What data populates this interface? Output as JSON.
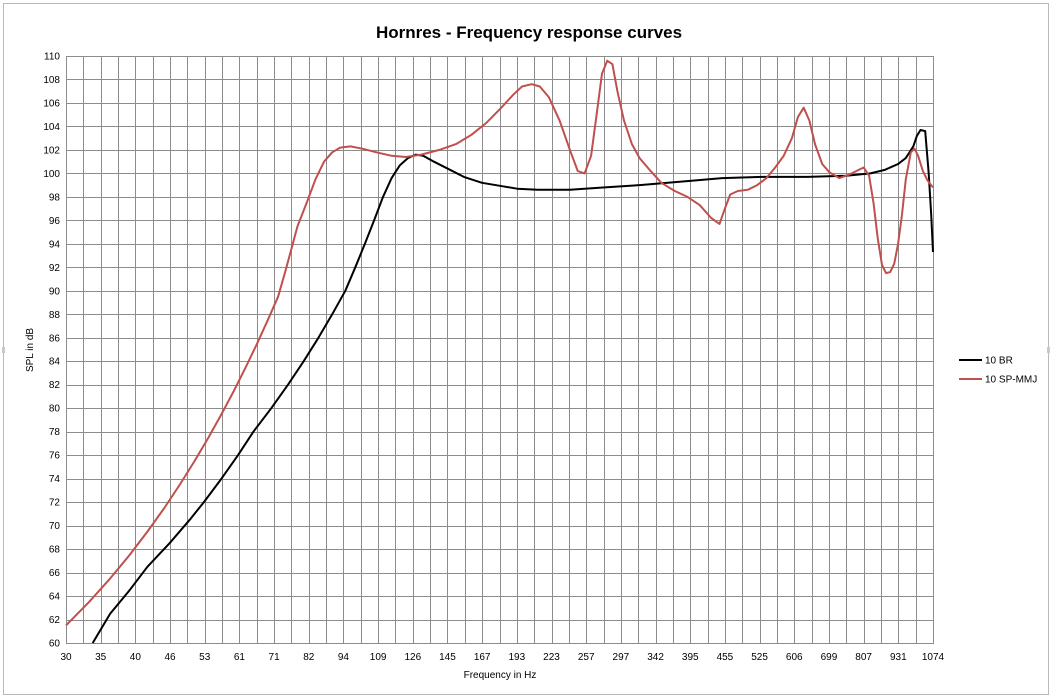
{
  "chart_data": {
    "type": "line",
    "title": "Hornres - Frequency response curves",
    "xlabel": "Frequency in Hz",
    "ylabel": "SPL in dB",
    "ylim": [
      60,
      110
    ],
    "ytick_step": 2,
    "x_tick_labels": [
      "30",
      "35",
      "40",
      "46",
      "53",
      "61",
      "71",
      "82",
      "94",
      "109",
      "126",
      "145",
      "167",
      "193",
      "223",
      "257",
      "297",
      "342",
      "395",
      "455",
      "525",
      "606",
      "699",
      "807",
      "931",
      "1074"
    ],
    "x_scale": "log",
    "xlim": [
      30,
      1074
    ],
    "minor_divisions_per_label": 2,
    "grid": true,
    "legend_position": "right",
    "series": [
      {
        "name": "10 BR",
        "color": "#000000",
        "points": [
          [
            33.5,
            60
          ],
          [
            36,
            62.5
          ],
          [
            39,
            64.5
          ],
          [
            42,
            66.5
          ],
          [
            46,
            68.5
          ],
          [
            50,
            70.5
          ],
          [
            53,
            72
          ],
          [
            57,
            74
          ],
          [
            61,
            76
          ],
          [
            65,
            78
          ],
          [
            70,
            80
          ],
          [
            75,
            82
          ],
          [
            80,
            84
          ],
          [
            85,
            86
          ],
          [
            90,
            88
          ],
          [
            95,
            90
          ],
          [
            99,
            92
          ],
          [
            103,
            94
          ],
          [
            107,
            96
          ],
          [
            111,
            98
          ],
          [
            115,
            99.6
          ],
          [
            119,
            100.7
          ],
          [
            123,
            101.3
          ],
          [
            127,
            101.6
          ],
          [
            131,
            101.5
          ],
          [
            137,
            101
          ],
          [
            145,
            100.4
          ],
          [
            155,
            99.7
          ],
          [
            167,
            99.2
          ],
          [
            182,
            98.9
          ],
          [
            193,
            98.7
          ],
          [
            210,
            98.6
          ],
          [
            240,
            98.6
          ],
          [
            275,
            98.8
          ],
          [
            320,
            99
          ],
          [
            380,
            99.3
          ],
          [
            450,
            99.6
          ],
          [
            530,
            99.7
          ],
          [
            640,
            99.7
          ],
          [
            750,
            99.8
          ],
          [
            830,
            100
          ],
          [
            880,
            100.3
          ],
          [
            930,
            100.8
          ],
          [
            960,
            101.3
          ],
          [
            990,
            102.3
          ],
          [
            1005,
            103.2
          ],
          [
            1020,
            103.7
          ],
          [
            1040,
            103.6
          ],
          [
            1055,
            100
          ],
          [
            1066,
            96.5
          ],
          [
            1074,
            93.3
          ]
        ]
      },
      {
        "name": "10 SP-MMJ",
        "color": "#c0504d",
        "points": [
          [
            30,
            61.5
          ],
          [
            33,
            63.5
          ],
          [
            36,
            65.5
          ],
          [
            39,
            67.5
          ],
          [
            42,
            69.5
          ],
          [
            45,
            71.5
          ],
          [
            48,
            73.5
          ],
          [
            51,
            75.5
          ],
          [
            54,
            77.5
          ],
          [
            57,
            79.5
          ],
          [
            60,
            81.5
          ],
          [
            63,
            83.5
          ],
          [
            66,
            85.5
          ],
          [
            69,
            87.5
          ],
          [
            72,
            89.5
          ],
          [
            74,
            91.5
          ],
          [
            76,
            93.5
          ],
          [
            78,
            95.5
          ],
          [
            81,
            97.5
          ],
          [
            84,
            99.5
          ],
          [
            87,
            101
          ],
          [
            90,
            101.8
          ],
          [
            93,
            102.2
          ],
          [
            97,
            102.3
          ],
          [
            102,
            102.1
          ],
          [
            108,
            101.8
          ],
          [
            115,
            101.5
          ],
          [
            122,
            101.4
          ],
          [
            130,
            101.6
          ],
          [
            140,
            102
          ],
          [
            150,
            102.5
          ],
          [
            160,
            103.3
          ],
          [
            170,
            104.3
          ],
          [
            180,
            105.5
          ],
          [
            190,
            106.7
          ],
          [
            197,
            107.4
          ],
          [
            205,
            107.6
          ],
          [
            212,
            107.4
          ],
          [
            220,
            106.5
          ],
          [
            230,
            104.5
          ],
          [
            240,
            102
          ],
          [
            248,
            100.2
          ],
          [
            255,
            100
          ],
          [
            262,
            101.5
          ],
          [
            268,
            105
          ],
          [
            274,
            108.5
          ],
          [
            280,
            109.6
          ],
          [
            286,
            109.3
          ],
          [
            292,
            107
          ],
          [
            300,
            104.5
          ],
          [
            310,
            102.5
          ],
          [
            320,
            101.3
          ],
          [
            335,
            100.2
          ],
          [
            350,
            99.2
          ],
          [
            370,
            98.5
          ],
          [
            390,
            98
          ],
          [
            410,
            97.3
          ],
          [
            430,
            96.2
          ],
          [
            445,
            95.7
          ],
          [
            455,
            97
          ],
          [
            465,
            98.2
          ],
          [
            480,
            98.5
          ],
          [
            500,
            98.6
          ],
          [
            520,
            99
          ],
          [
            540,
            99.6
          ],
          [
            560,
            100.5
          ],
          [
            580,
            101.5
          ],
          [
            600,
            103
          ],
          [
            615,
            104.8
          ],
          [
            630,
            105.6
          ],
          [
            645,
            104.5
          ],
          [
            660,
            102.5
          ],
          [
            680,
            100.8
          ],
          [
            700,
            100.1
          ],
          [
            730,
            99.6
          ],
          [
            760,
            99.9
          ],
          [
            790,
            100.3
          ],
          [
            807,
            100.5
          ],
          [
            825,
            99.8
          ],
          [
            840,
            97.5
          ],
          [
            855,
            94.5
          ],
          [
            870,
            92.2
          ],
          [
            885,
            91.5
          ],
          [
            900,
            91.6
          ],
          [
            915,
            92.3
          ],
          [
            930,
            94
          ],
          [
            945,
            96.5
          ],
          [
            960,
            99.5
          ],
          [
            980,
            101.8
          ],
          [
            995,
            102.1
          ],
          [
            1010,
            101.5
          ],
          [
            1030,
            100.2
          ],
          [
            1050,
            99.4
          ],
          [
            1074,
            98.8
          ]
        ]
      }
    ]
  }
}
